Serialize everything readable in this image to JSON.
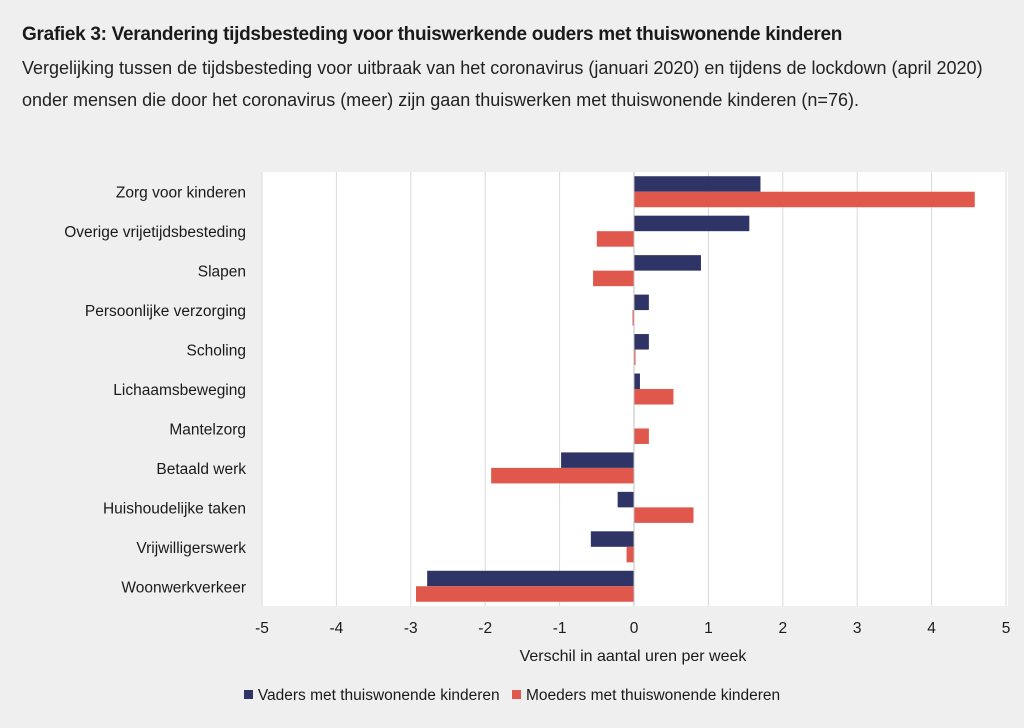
{
  "title": "Grafiek 3: Verandering tijdsbesteding voor thuiswerkende ouders met thuiswonende kinderen",
  "subtitle": "Vergelijking tussen de tijdsbesteding voor uitbraak van het coronavirus (januari 2020) en tijdens de lockdown (april 2020) onder mensen die door het coronavirus (meer) zijn gaan thuiswerken met thuiswonende kinderen (n=76).",
  "colors": {
    "vaders": "#2f3466",
    "moeders": "#e0574c",
    "grid": "#d9d9d9",
    "plot_bg": "#ffffff",
    "page_bg": "#efefef"
  },
  "chart_data": {
    "type": "bar",
    "orientation": "horizontal",
    "categories": [
      "Zorg voor kinderen",
      "Overige vrijetijdsbesteding",
      "Slapen",
      "Persoonlijke verzorging",
      "Scholing",
      "Lichaamsbeweging",
      "Mantelzorg",
      "Betaald werk",
      "Huishoudelijke taken",
      "Vrijwilligerswerk",
      "Woonwerkverkeer"
    ],
    "series": [
      {
        "name": "Vaders met thuiswonende kinderen",
        "values": [
          1.7,
          1.55,
          0.9,
          0.2,
          0.2,
          0.08,
          0.0,
          -0.98,
          -0.22,
          -0.58,
          -2.78
        ]
      },
      {
        "name": "Moeders met thuiswonende kinderen",
        "values": [
          4.58,
          -0.5,
          -0.55,
          -0.02,
          0.02,
          0.53,
          0.2,
          -1.92,
          0.8,
          -0.1,
          -2.93
        ]
      }
    ],
    "xlabel": "Verschil in aantal uren per week",
    "xlim": [
      -5,
      5
    ],
    "xticks": [
      "-5",
      "-4",
      "-3",
      "-2",
      "-1",
      "0",
      "1",
      "2",
      "3",
      "4",
      "5"
    ],
    "grid": true,
    "legend_position": "bottom"
  }
}
